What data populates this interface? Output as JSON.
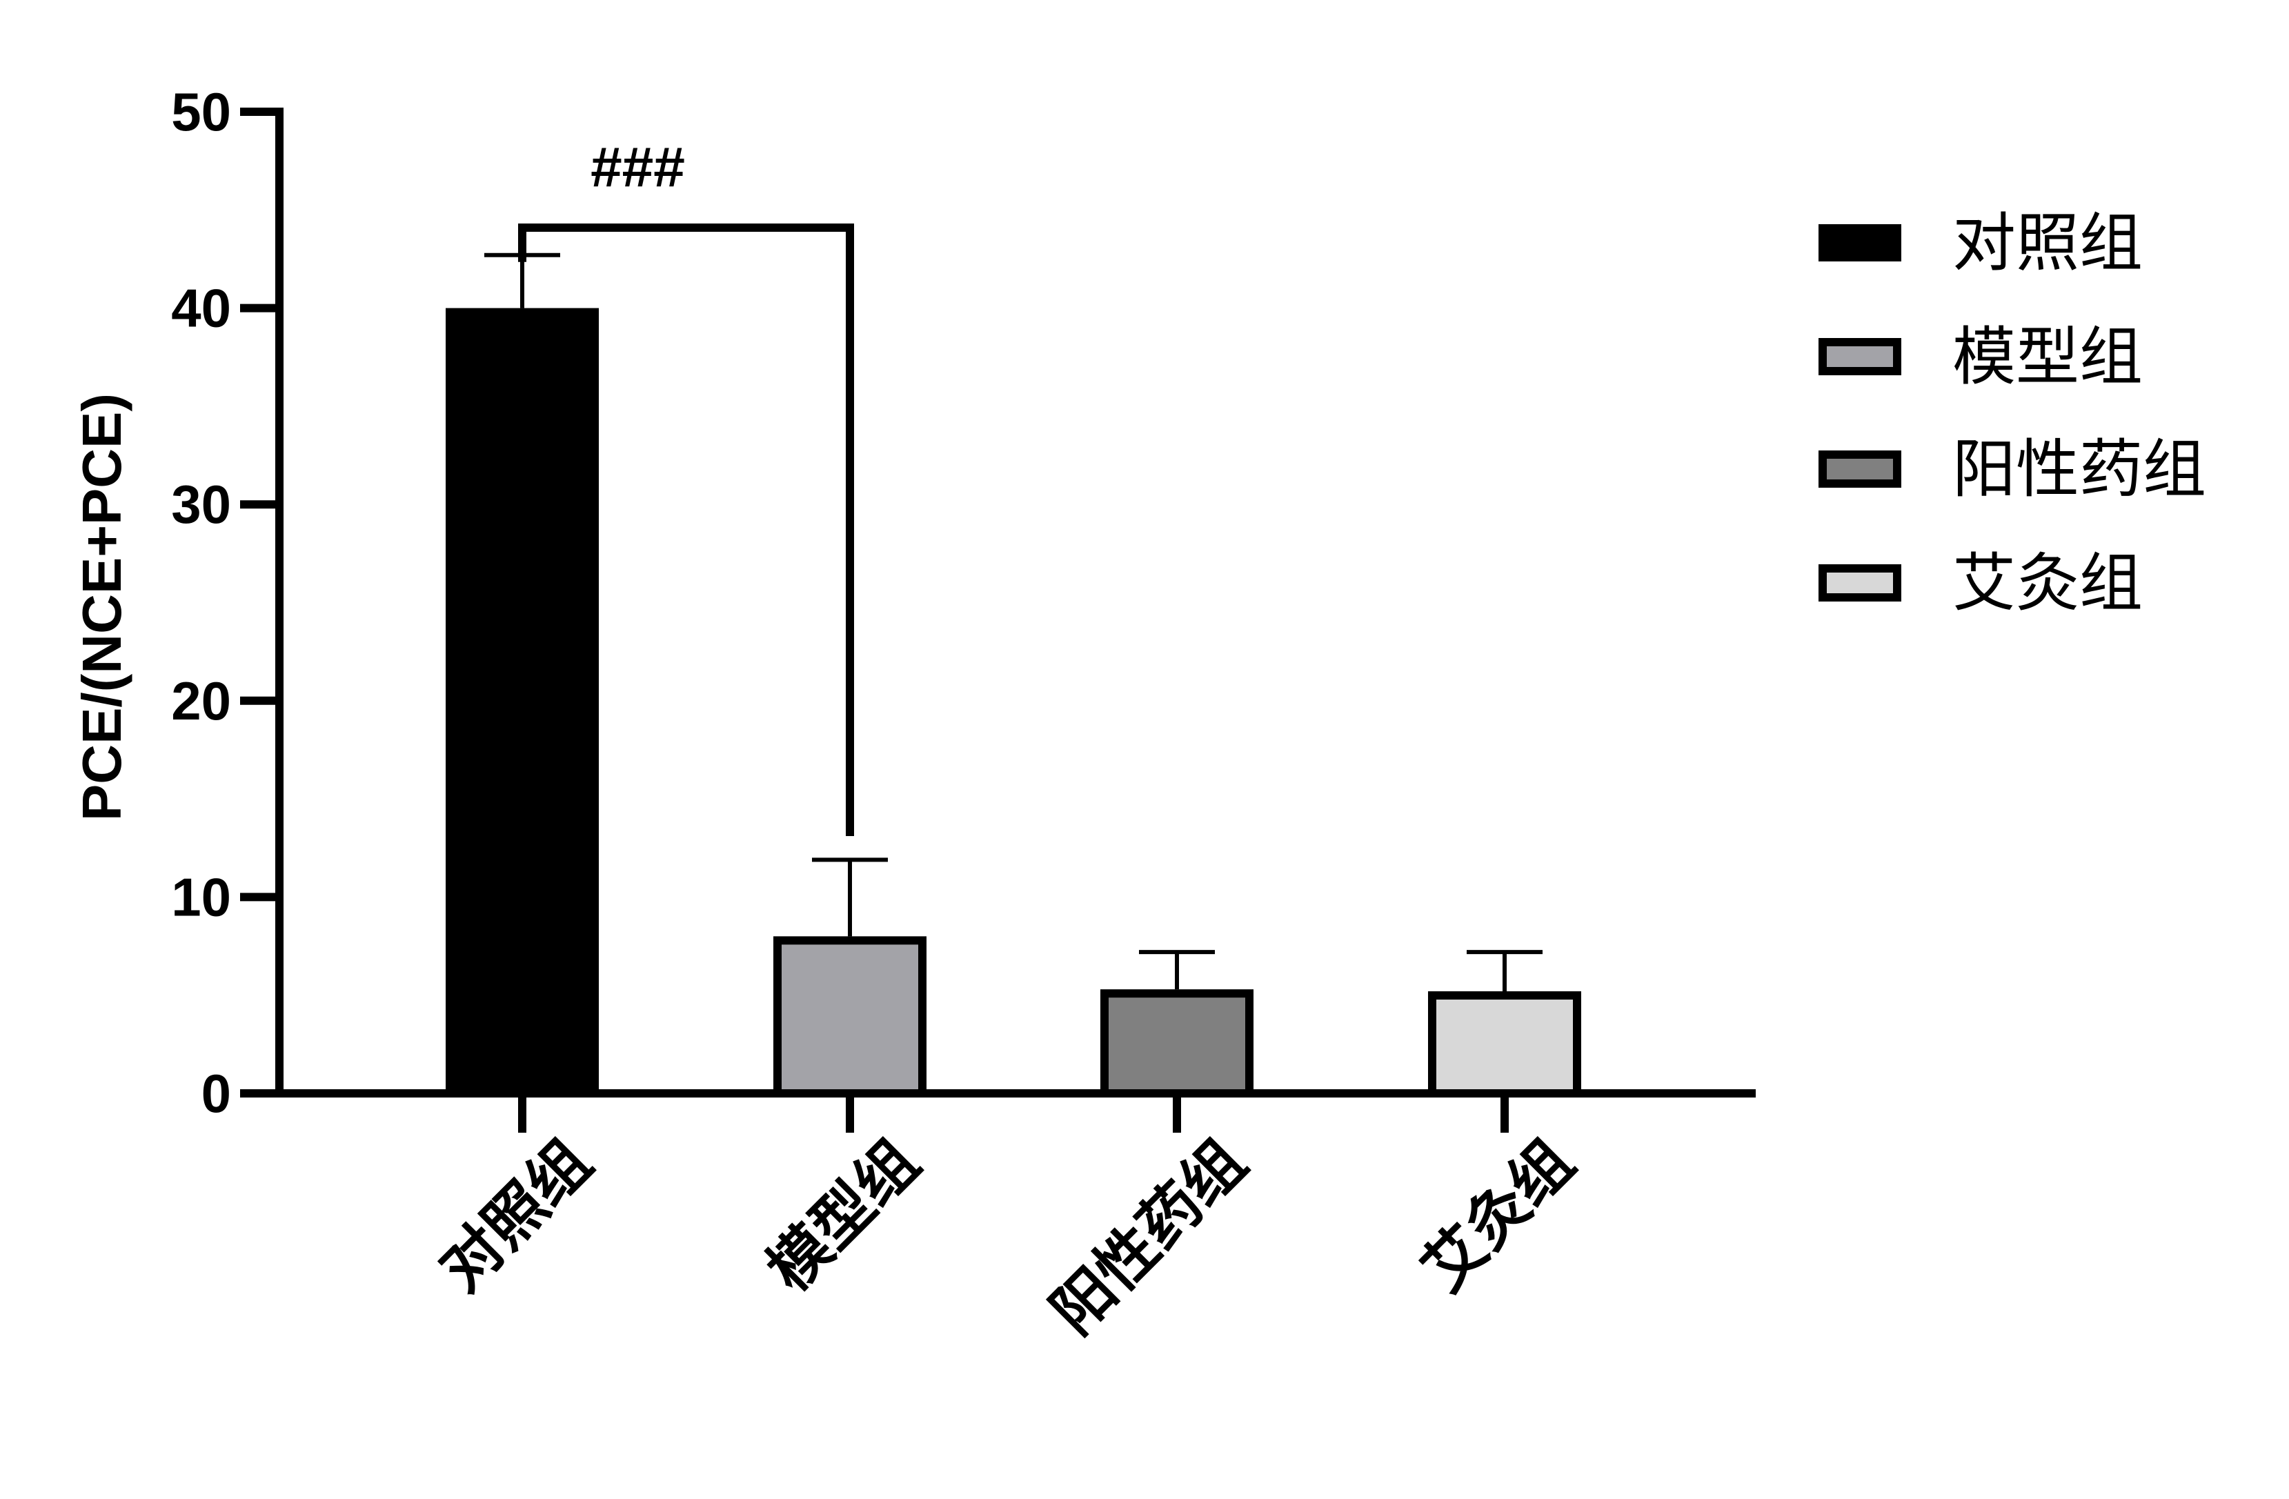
{
  "chart_data": {
    "type": "bar",
    "categories": [
      "对照组",
      "模型组",
      "阳性药组",
      "艾灸组"
    ],
    "values": [
      40.0,
      8.0,
      5.3,
      5.2
    ],
    "error": [
      2.7,
      3.9,
      1.9,
      2.0
    ],
    "colors": [
      "#000000",
      "#a3a3a8",
      "#808080",
      "#d8d8d8"
    ],
    "ylabel": "PCE/(NCE+PCE)",
    "ylim": [
      0,
      50
    ],
    "yticks": [
      "0",
      "10",
      "20",
      "30",
      "40",
      "50"
    ],
    "grid": false,
    "legend": {
      "position": "right",
      "entries": [
        "对照组",
        "模型组",
        "阳性药组",
        "艾灸组"
      ]
    },
    "annotation": {
      "text": "###",
      "from": "对照组",
      "to": "模型组"
    }
  }
}
